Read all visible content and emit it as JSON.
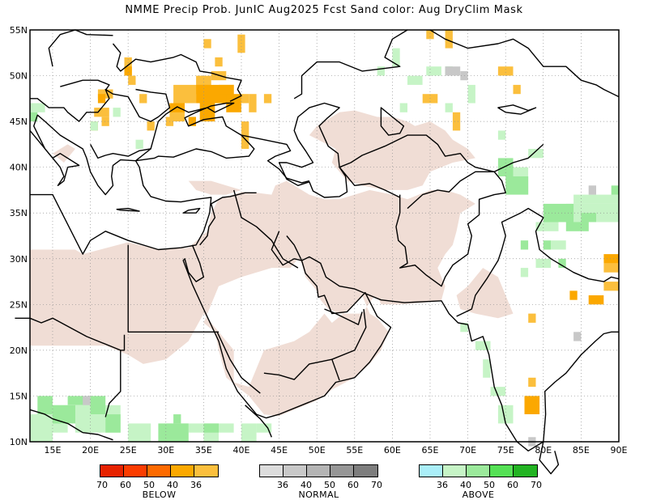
{
  "title": "NMME Precip Prob. JunIC  Aug2025 Fcst  Sand color: Aug DryClim Mask",
  "map": {
    "lat_ticks": [
      "55N",
      "50N",
      "45N",
      "40N",
      "35N",
      "30N",
      "25N",
      "20N",
      "15N",
      "10N"
    ],
    "lon_ticks": [
      "15E",
      "20E",
      "25E",
      "30E",
      "35E",
      "40E",
      "45E",
      "50E",
      "55E",
      "60E",
      "65E",
      "70E",
      "75E",
      "80E",
      "85E",
      "90E"
    ],
    "lon_range": [
      12,
      90
    ],
    "lat_range": [
      10,
      55
    ],
    "grid": "dotted",
    "colors": {
      "dry_mask": "#f0ddd5",
      "below_36": "#fbbf3d",
      "below_40": "#fba800",
      "above_36": "#c6f4c6",
      "above_40": "#9be99b",
      "normal_36": "#c8c8c8",
      "normal_40": "#b4b4b4"
    }
  },
  "legend": {
    "below": {
      "ticks": [
        "70",
        "60",
        "50",
        "40",
        "36"
      ],
      "caption": "BELOW",
      "colors": [
        "#e62200",
        "#fb3c00",
        "#fd6a00",
        "#fba800",
        "#fbbf3d"
      ]
    },
    "normal": {
      "ticks": [
        "36",
        "40",
        "50",
        "60",
        "70"
      ],
      "caption": "NORMAL",
      "colors": [
        "#dcdcdc",
        "#c8c8c8",
        "#b4b4b4",
        "#969696",
        "#7d7d7d"
      ]
    },
    "above": {
      "ticks": [
        "36",
        "40",
        "50",
        "60",
        "70"
      ],
      "caption": "ABOVE",
      "colors": [
        "#aaeef8",
        "#c6f4c6",
        "#9be99b",
        "#55e055",
        "#22b322"
      ]
    }
  }
}
